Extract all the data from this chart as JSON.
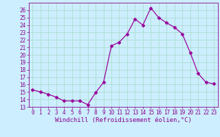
{
  "x": [
    0,
    1,
    2,
    3,
    4,
    5,
    6,
    7,
    8,
    9,
    10,
    11,
    12,
    13,
    14,
    15,
    16,
    17,
    18,
    19,
    20,
    21,
    22,
    23
  ],
  "y": [
    15.3,
    15.0,
    14.7,
    14.3,
    13.8,
    13.8,
    13.8,
    13.3,
    14.9,
    16.3,
    21.2,
    21.7,
    22.8,
    24.8,
    24.0,
    26.3,
    25.0,
    24.3,
    23.7,
    22.8,
    20.3,
    17.5,
    16.3,
    16.1
  ],
  "line_color": "#990099",
  "marker": "D",
  "marker_size": 2.5,
  "bg_color": "#cceeff",
  "grid_color": "#aaddcc",
  "xlabel": "Windchill (Refroidissement éolien,°C)",
  "ylim": [
    13,
    27
  ],
  "xlim": [
    -0.5,
    23.5
  ],
  "yticks": [
    13,
    14,
    15,
    16,
    17,
    18,
    19,
    20,
    21,
    22,
    23,
    24,
    25,
    26
  ],
  "xticks": [
    0,
    1,
    2,
    3,
    4,
    5,
    6,
    7,
    8,
    9,
    10,
    11,
    12,
    13,
    14,
    15,
    16,
    17,
    18,
    19,
    20,
    21,
    22,
    23
  ],
  "tick_fontsize": 5.5,
  "xlabel_fontsize": 6.5,
  "axis_color": "#880088",
  "linewidth": 0.9
}
